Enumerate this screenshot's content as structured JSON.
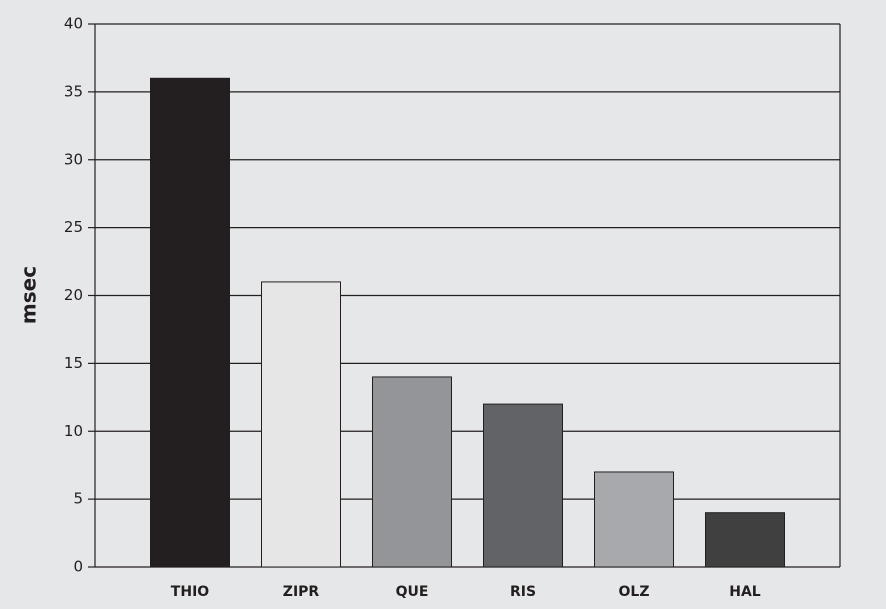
{
  "chart_data": {
    "type": "bar",
    "y_label": "msec",
    "categories": [
      "THIO",
      "ZIPR",
      "QUE",
      "RIS",
      "OLZ",
      "HAL"
    ],
    "values": [
      36,
      21,
      14,
      12,
      7,
      4
    ],
    "colors": [
      "#231f20",
      "#e6e6e7",
      "#939598",
      "#626366",
      "#a7a9ac",
      "#404041"
    ],
    "ylim": [
      0,
      40
    ],
    "yticks": [
      0,
      5,
      10,
      15,
      20,
      25,
      30,
      35,
      40
    ],
    "grid": true
  }
}
